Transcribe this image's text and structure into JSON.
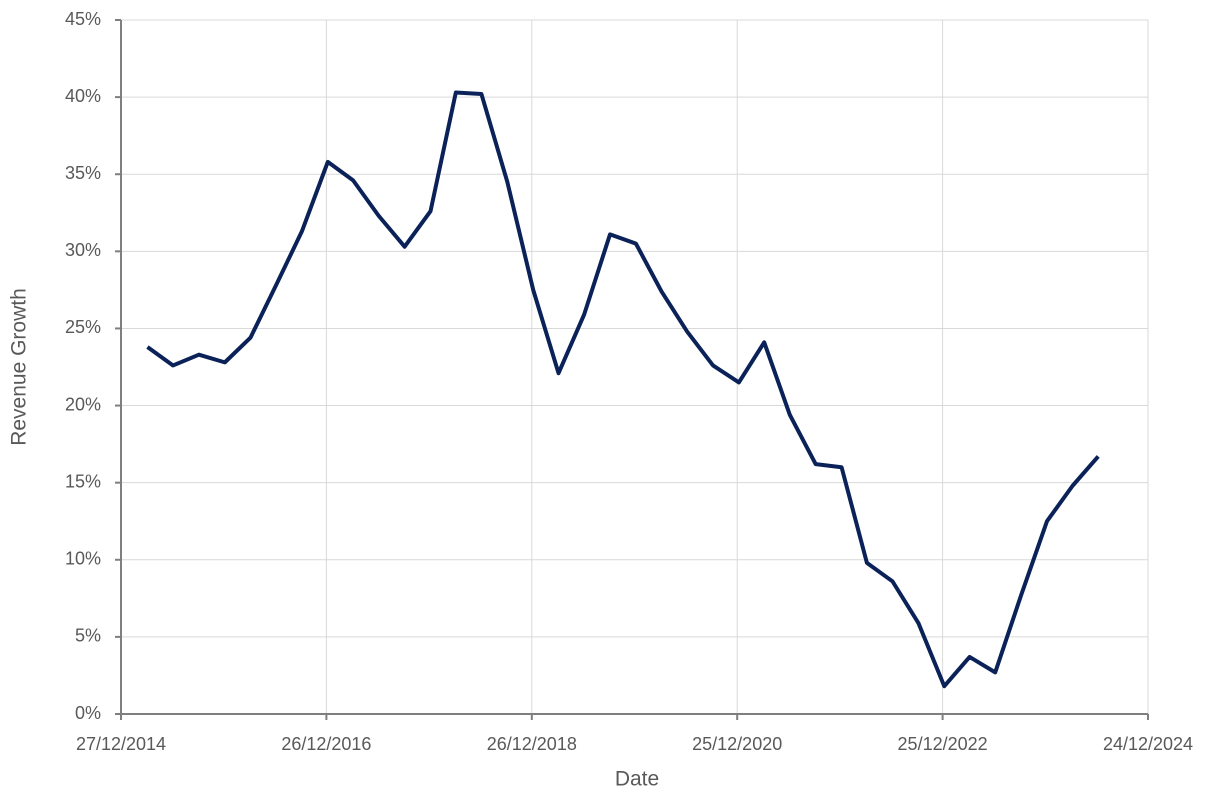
{
  "chart_data": {
    "type": "line",
    "x_label": "Date",
    "y_label": "Revenue Growth",
    "x": [
      "31/03/2015",
      "30/06/2015",
      "30/09/2015",
      "31/12/2015",
      "31/03/2016",
      "30/06/2016",
      "30/09/2016",
      "31/12/2016",
      "31/03/2017",
      "30/06/2017",
      "30/09/2017",
      "31/12/2017",
      "31/03/2018",
      "30/06/2018",
      "30/09/2018",
      "31/12/2018",
      "31/03/2019",
      "30/06/2019",
      "30/09/2019",
      "31/12/2019",
      "31/03/2020",
      "30/06/2020",
      "30/09/2020",
      "31/12/2020",
      "31/03/2021",
      "30/06/2021",
      "30/09/2021",
      "31/12/2021",
      "31/03/2022",
      "30/06/2022",
      "30/09/2022",
      "31/12/2022",
      "31/03/2023",
      "30/06/2023",
      "30/09/2023",
      "31/12/2023",
      "31/03/2024",
      "30/06/2024"
    ],
    "series": [
      {
        "name": "Revenue Growth",
        "color": "#0b2259",
        "values": [
          23.8,
          22.6,
          23.3,
          22.8,
          24.4,
          27.8,
          31.3,
          35.8,
          34.6,
          32.3,
          30.3,
          32.6,
          40.3,
          40.2,
          34.5,
          27.5,
          22.1,
          25.9,
          31.1,
          30.5,
          27.4,
          24.8,
          22.6,
          21.5,
          24.1,
          19.4,
          16.2,
          16.0,
          9.8,
          8.6,
          5.9,
          1.8,
          3.7,
          2.7,
          7.7,
          12.5,
          14.8,
          16.7
        ]
      }
    ],
    "xlim": [
      "27/12/2014",
      "24/12/2024"
    ],
    "xticks": [
      "27/12/2014",
      "26/12/2016",
      "26/12/2018",
      "25/12/2020",
      "25/12/2022",
      "24/12/2024"
    ],
    "ylim": [
      0,
      45
    ],
    "yticks": [
      {
        "value": 0,
        "label": "0%"
      },
      {
        "value": 5,
        "label": "5%"
      },
      {
        "value": 10,
        "label": "10%"
      },
      {
        "value": 15,
        "label": "15%"
      },
      {
        "value": 20,
        "label": "20%"
      },
      {
        "value": 25,
        "label": "25%"
      },
      {
        "value": 30,
        "label": "30%"
      },
      {
        "value": 35,
        "label": "35%"
      },
      {
        "value": 40,
        "label": "40%"
      },
      {
        "value": 45,
        "label": "45%"
      }
    ],
    "grid": true
  }
}
